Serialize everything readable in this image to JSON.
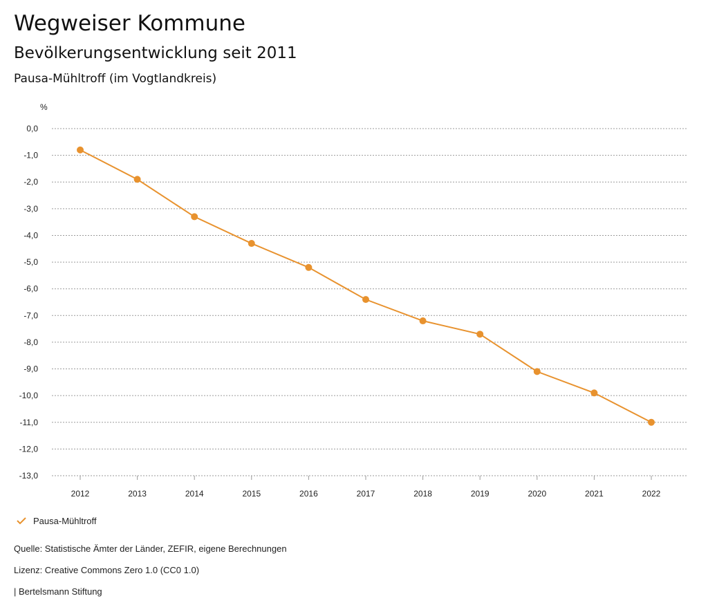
{
  "header": {
    "title": "Wegweiser Kommune",
    "subtitle": "Bevölkerungsentwicklung seit 2011",
    "region": "Pausa-Mühltroff (im Vogtlandkreis)"
  },
  "chart_data": {
    "type": "line",
    "ylabel": "%",
    "x": [
      "2012",
      "2013",
      "2014",
      "2015",
      "2016",
      "2017",
      "2018",
      "2019",
      "2020",
      "2021",
      "2022"
    ],
    "series": [
      {
        "name": "Pausa-Mühltroff",
        "values": [
          -0.8,
          -1.9,
          -3.3,
          -4.3,
          -5.2,
          -6.4,
          -7.2,
          -7.7,
          -9.1,
          -9.9,
          -11.0
        ]
      }
    ],
    "ylim": [
      -13,
      0
    ],
    "yticks": [
      "0,0",
      "-1,0",
      "-2,0",
      "-3,0",
      "-4,0",
      "-5,0",
      "-6,0",
      "-7,0",
      "-8,0",
      "-9,0",
      "-10,0",
      "-11,0",
      "-12,0",
      "-13,0"
    ],
    "grid": true,
    "legend_position": "bottom-left",
    "color": "#E8922E"
  },
  "footer": {
    "source": "Quelle: Statistische Ämter der Länder, ZEFIR, eigene Berechnungen",
    "license": "Lizenz: Creative Commons Zero 1.0 (CC0 1.0)",
    "publisher": "| Bertelsmann Stiftung"
  }
}
